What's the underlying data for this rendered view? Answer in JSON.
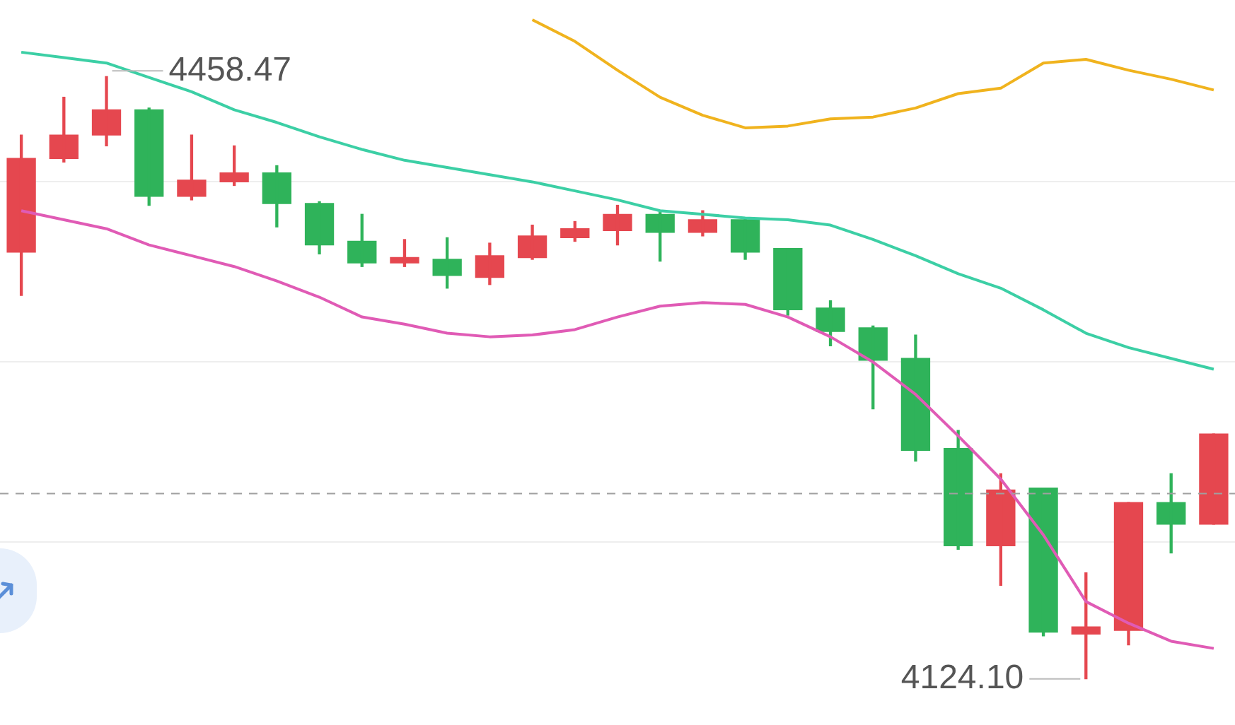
{
  "chart_data": {
    "type": "candlestick",
    "categories": [
      null,
      null,
      null,
      null,
      null,
      null,
      null,
      null,
      null,
      null,
      null,
      null,
      null,
      null,
      null,
      null,
      null,
      null,
      null,
      null,
      null,
      null,
      null,
      null,
      null,
      null,
      null,
      null,
      null
    ],
    "ohlc": [
      [
        4361,
        4426,
        4337,
        4413
      ],
      [
        4413,
        4447,
        4411,
        4426
      ],
      [
        4426,
        4458.47,
        4420,
        4440
      ],
      [
        4440,
        4441,
        4387,
        4392
      ],
      [
        4392,
        4426,
        4390,
        4401
      ],
      [
        4400,
        4420,
        4398,
        4405
      ],
      [
        4405,
        4409,
        4375,
        4388
      ],
      [
        4388,
        4389,
        4360,
        4365
      ],
      [
        4367,
        4382,
        4353,
        4355
      ],
      [
        4355,
        4368,
        4353,
        4358
      ],
      [
        4357,
        4369,
        4341,
        4348
      ],
      [
        4347,
        4366,
        4343,
        4359
      ],
      [
        4358,
        4376,
        4357,
        4370
      ],
      [
        4369,
        4378,
        4367,
        4374
      ],
      [
        4373,
        4387,
        4365,
        4382
      ],
      [
        4382,
        4383,
        4356,
        4372
      ],
      [
        4372,
        4384,
        4370,
        4379
      ],
      [
        4379,
        4380,
        4357,
        4361
      ],
      [
        4363,
        4363,
        4326,
        4329
      ],
      [
        4330,
        4334,
        4309,
        4317
      ],
      [
        4319,
        4320,
        4274,
        4301
      ],
      [
        4302,
        4315,
        4245,
        4251
      ],
      [
        4252,
        4262,
        4196,
        4198
      ],
      [
        4198,
        4238,
        4176,
        4229
      ],
      [
        4230,
        4230,
        4148,
        4150
      ],
      [
        4149,
        4183,
        4124.1,
        4153
      ],
      [
        4151,
        4222,
        4143,
        4222
      ],
      [
        4222,
        4238,
        4194,
        4210
      ],
      [
        4210,
        4260,
        4210,
        4260
      ]
    ],
    "colors": [
      "#e5474f",
      "#e5474f",
      "#e5474f",
      "#2fb35a",
      "#e5474f",
      "#e5474f",
      "#2fb35a",
      "#2fb35a",
      "#2fb35a",
      "#e5474f",
      "#2fb35a",
      "#e5474f",
      "#e5474f",
      "#e5474f",
      "#e5474f",
      "#2fb35a",
      "#e5474f",
      "#2fb35a",
      "#2fb35a",
      "#2fb35a",
      "#2fb35a",
      "#2fb35a",
      "#2fb35a",
      "#e5474f",
      "#2fb35a",
      "#e5474f",
      "#e5474f",
      "#2fb35a",
      "#e5474f"
    ],
    "series": [
      {
        "type": "line",
        "color": "#3ccfa5",
        "values": [
          4472,
          4469,
          4466,
          4458,
          4450,
          4440,
          4433,
          4425,
          4418,
          4412,
          4408,
          4404,
          4400,
          4395,
          4390,
          4384,
          4382,
          4380,
          4379,
          4376,
          4368,
          4359,
          4349,
          4341,
          4329,
          4316,
          4308,
          4302,
          4296
        ]
      },
      {
        "type": "line",
        "color": "#f0b31e",
        "values": [
          null,
          null,
          null,
          null,
          null,
          null,
          null,
          null,
          null,
          null,
          null,
          null,
          4490,
          4478,
          4462,
          4447,
          4437,
          4430,
          4431,
          4435,
          4436,
          4441,
          4449,
          4452,
          4466,
          4468,
          4462,
          4457,
          4451
        ]
      },
      {
        "type": "line",
        "color": "#e05bb5",
        "values": [
          4384,
          4379,
          4374,
          4365,
          4359,
          4353,
          4345,
          4336,
          4325,
          4321,
          4316,
          4314,
          4315,
          4318,
          4325,
          4331,
          4333,
          4332,
          4325,
          4314,
          4300,
          4282,
          4259,
          4235,
          4204,
          4167,
          4155,
          4145,
          4141
        ]
      }
    ],
    "yticks": [
      {
        "value": 4200,
        "label": null
      },
      {
        "value": 4300,
        "label": null
      },
      {
        "value": 4400,
        "label": null
      }
    ],
    "grid": "y",
    "tick_labels": false,
    "legend": false,
    "ref_lines": [
      {
        "axis": "y",
        "value": 4227,
        "color": "#a0a0a0",
        "line_style": "dashed"
      }
    ],
    "annotations": [
      "4458.47",
      "4124.10"
    ]
  }
}
